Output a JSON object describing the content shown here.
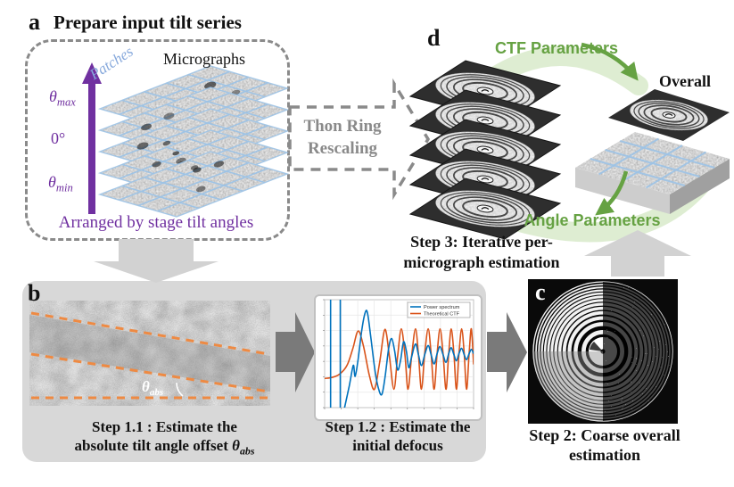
{
  "colors": {
    "purple": "#7030A0",
    "green_text": "#66a243",
    "green_band": "#dcecd0",
    "orange_dash": "#EE8A43",
    "gray_dashed": "#8a8a8a",
    "light_arrow": "#d2d2d2",
    "dark_arrow": "#7a7a7a",
    "panel_bg": "#d8d8d8",
    "blue_grid": "#9DC3E6",
    "blue_text": "#87A9DC",
    "plot_blue": "#0072BD",
    "plot_orange": "#D95319"
  },
  "panel_a": {
    "label": "a",
    "title": "Prepare input tilt series",
    "micrographs": "Micrographs",
    "patches": "Patches",
    "theta_max_base": "θ",
    "theta_max_sub": "max",
    "zero_deg": "0°",
    "theta_min_base": "θ",
    "theta_min_sub": "min",
    "caption": "Arranged by stage tilt angles"
  },
  "rescale_arrow": {
    "line1": "Thon Ring",
    "line2": "Rescaling"
  },
  "panel_d": {
    "label": "d",
    "ctf_parameters": "CTF Parameters",
    "overall": "Overall",
    "angle_parameters": "Angle Parameters",
    "step3_line1": "Step 3: Iterative per-",
    "step3_line2": "micrograph  estimation"
  },
  "panel_b": {
    "label": "b",
    "theta_abs_base": "θ",
    "theta_abs_sub": "abs",
    "step11_line1": "Step 1.1 : Estimate the",
    "step11_line2_prefix": "absolute tilt angle offset ",
    "step12_line1": "Step 1.2 : Estimate the",
    "step12_line2": "initial defocus"
  },
  "panel_c": {
    "label": "c",
    "caption_line1": "Step 2: Coarse overall",
    "caption_line2": "estimation"
  },
  "chart_data": {
    "type": "line",
    "title": "",
    "xlabel": "",
    "ylabel": "",
    "x_range": [
      0,
      1
    ],
    "y_range": [
      -1,
      1
    ],
    "grid": true,
    "legend_position": "top-right",
    "series": [
      {
        "name": "Power spectrum",
        "color": "#0072BD",
        "spikes_x": [
          0.04,
          0.105
        ],
        "points": [
          [
            0.13,
            -1.05
          ],
          [
            0.165,
            -0.6
          ],
          [
            0.185,
            -0.3
          ],
          [
            0.195,
            -0.22
          ],
          [
            0.205,
            -0.42
          ],
          [
            0.225,
            -0.1
          ],
          [
            0.25,
            0.45
          ],
          [
            0.275,
            0.78
          ],
          [
            0.29,
            0.72
          ],
          [
            0.31,
            0.3
          ],
          [
            0.34,
            -0.35
          ],
          [
            0.365,
            -0.68
          ],
          [
            0.385,
            -0.75
          ],
          [
            0.405,
            -0.45
          ],
          [
            0.43,
            0.1
          ],
          [
            0.45,
            0.28
          ],
          [
            0.47,
            0.05
          ],
          [
            0.49,
            -0.3
          ],
          [
            0.51,
            -0.12
          ],
          [
            0.53,
            0.22
          ],
          [
            0.55,
            0.02
          ],
          [
            0.565,
            -0.26
          ],
          [
            0.585,
            -0.05
          ],
          [
            0.61,
            0.18
          ],
          [
            0.63,
            -0.02
          ],
          [
            0.65,
            -0.22
          ],
          [
            0.672,
            -0.02
          ],
          [
            0.695,
            0.15
          ],
          [
            0.715,
            -0.02
          ],
          [
            0.735,
            -0.19
          ],
          [
            0.755,
            0.0
          ],
          [
            0.775,
            0.13
          ],
          [
            0.795,
            -0.02
          ],
          [
            0.815,
            -0.16
          ],
          [
            0.833,
            0.0
          ],
          [
            0.85,
            0.11
          ],
          [
            0.868,
            -0.02
          ],
          [
            0.885,
            -0.13
          ],
          [
            0.902,
            0.0
          ],
          [
            0.92,
            0.1
          ],
          [
            0.937,
            -0.02
          ],
          [
            0.953,
            -0.11
          ],
          [
            0.97,
            0.0
          ],
          [
            0.985,
            0.08
          ],
          [
            1.0,
            0.0
          ]
        ]
      },
      {
        "name": "Theoretical CTF",
        "color": "#D95319",
        "points": [
          [
            0,
            -0.46
          ],
          [
            0.05,
            -0.44
          ],
          [
            0.1,
            -0.38
          ],
          [
            0.15,
            -0.22
          ],
          [
            0.19,
            0.1
          ],
          [
            0.225,
            0.42
          ],
          [
            0.26,
            0.15
          ],
          [
            0.3,
            -0.4
          ],
          [
            0.335,
            -0.66
          ],
          [
            0.37,
            -0.15
          ],
          [
            0.405,
            0.45
          ],
          [
            0.435,
            -0.05
          ],
          [
            0.465,
            -0.66
          ],
          [
            0.49,
            -0.05
          ],
          [
            0.515,
            0.46
          ],
          [
            0.54,
            -0.05
          ],
          [
            0.56,
            -0.66
          ],
          [
            0.585,
            -0.02
          ],
          [
            0.61,
            0.46
          ],
          [
            0.63,
            -0.02
          ],
          [
            0.65,
            -0.66
          ],
          [
            0.672,
            0.0
          ],
          [
            0.695,
            0.46
          ],
          [
            0.715,
            0.0
          ],
          [
            0.735,
            -0.66
          ],
          [
            0.755,
            0.0
          ],
          [
            0.775,
            0.46
          ],
          [
            0.795,
            0.0
          ],
          [
            0.815,
            -0.66
          ],
          [
            0.833,
            0.0
          ],
          [
            0.85,
            0.46
          ],
          [
            0.868,
            0.0
          ],
          [
            0.885,
            -0.66
          ],
          [
            0.902,
            0.0
          ],
          [
            0.92,
            0.46
          ],
          [
            0.937,
            0.0
          ],
          [
            0.953,
            -0.66
          ],
          [
            0.97,
            0.0
          ],
          [
            0.985,
            0.46
          ],
          [
            1.0,
            -0.2
          ]
        ]
      }
    ]
  }
}
